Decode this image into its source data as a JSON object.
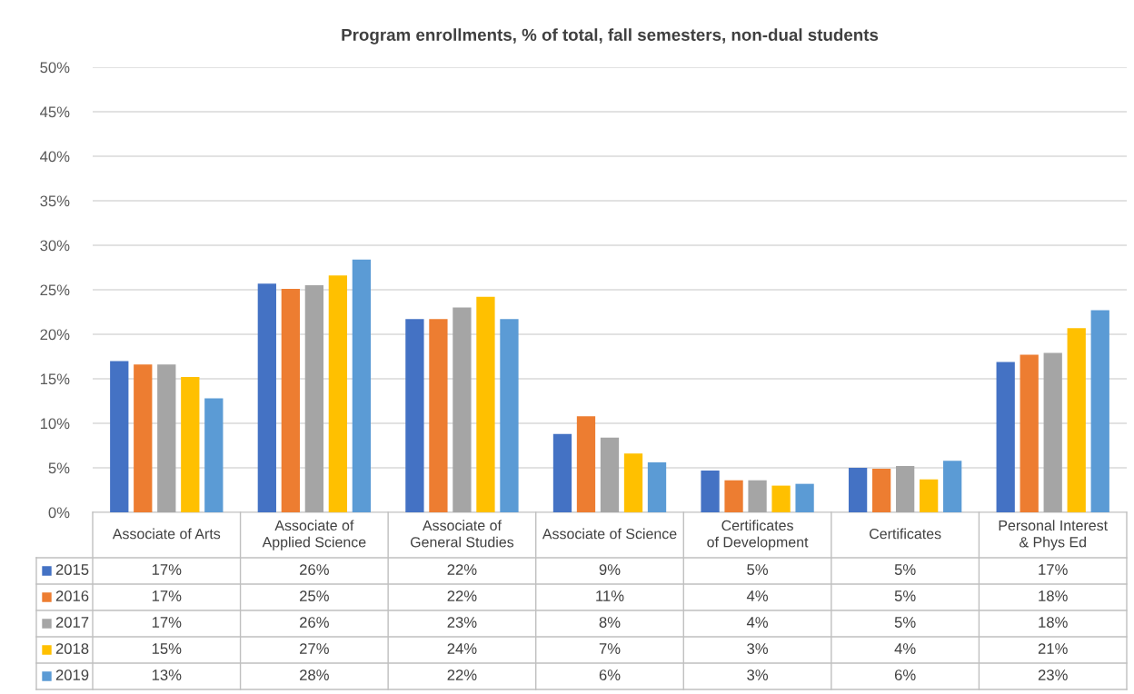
{
  "chart_data": {
    "type": "bar",
    "title": "Program enrollments, % of total, fall semesters, non-dual students",
    "categories": [
      "Associate of Arts",
      "Associate of Applied Science",
      "Associate of General Studies",
      "Associate of Science",
      "Certificates of Development",
      "Certificates",
      "Personal Interest & Phys Ed"
    ],
    "series": [
      {
        "name": "2015",
        "color": "#4472c4",
        "values": [
          17.0,
          25.7,
          21.7,
          8.8,
          4.7,
          5.0,
          16.9
        ],
        "value_labels": [
          "17%",
          "26%",
          "22%",
          "9%",
          "5%",
          "5%",
          "17%"
        ]
      },
      {
        "name": "2016",
        "color": "#ed7d31",
        "values": [
          16.6,
          25.1,
          21.7,
          10.8,
          3.6,
          4.9,
          17.7
        ],
        "value_labels": [
          "17%",
          "25%",
          "22%",
          "11%",
          "4%",
          "5%",
          "18%"
        ]
      },
      {
        "name": "2017",
        "color": "#a5a5a5",
        "values": [
          16.6,
          25.5,
          23.0,
          8.4,
          3.6,
          5.2,
          17.9
        ],
        "value_labels": [
          "17%",
          "26%",
          "23%",
          "8%",
          "4%",
          "5%",
          "18%"
        ]
      },
      {
        "name": "2018",
        "color": "#ffc000",
        "values": [
          15.2,
          26.6,
          24.2,
          6.6,
          3.0,
          3.7,
          20.7
        ],
        "value_labels": [
          "15%",
          "27%",
          "24%",
          "7%",
          "3%",
          "4%",
          "21%"
        ]
      },
      {
        "name": "2019",
        "color": "#5b9bd5",
        "values": [
          12.8,
          28.4,
          21.7,
          5.6,
          3.2,
          5.8,
          22.7
        ],
        "value_labels": [
          "13%",
          "28%",
          "22%",
          "6%",
          "3%",
          "6%",
          "23%"
        ]
      }
    ],
    "ylim": [
      0,
      50
    ],
    "yticks": [
      {
        "value": 0,
        "label": "0%"
      },
      {
        "value": 5,
        "label": "5%"
      },
      {
        "value": 10,
        "label": "10%"
      },
      {
        "value": 15,
        "label": "15%"
      },
      {
        "value": 20,
        "label": "20%"
      },
      {
        "value": 25,
        "label": "25%"
      },
      {
        "value": 30,
        "label": "30%"
      },
      {
        "value": 35,
        "label": "35%"
      },
      {
        "value": 40,
        "label": "40%"
      },
      {
        "value": 45,
        "label": "45%"
      },
      {
        "value": 50,
        "label": "50%"
      }
    ],
    "grid": "y",
    "legend": "bottom"
  }
}
